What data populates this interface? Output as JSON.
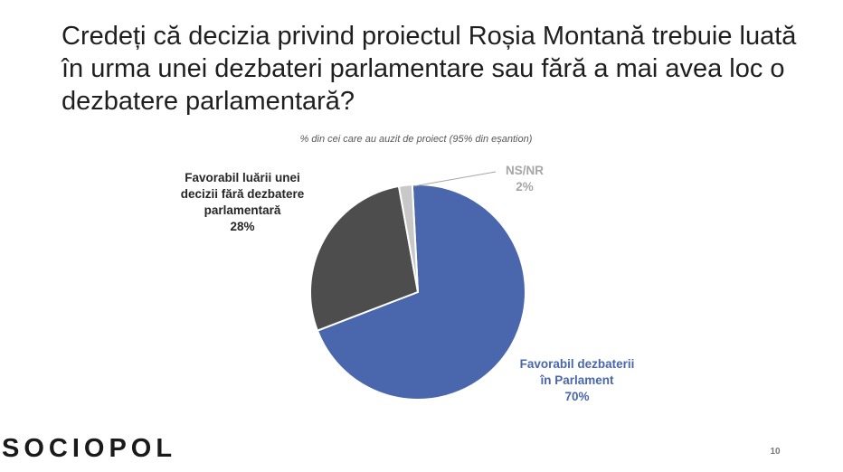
{
  "slide": {
    "title": "Credeți că decizia privind proiectul Roșia Montană trebuie luată în urma unei dezbateri parlamentare sau fără a mai avea loc o dezbatere parlamentară?",
    "subtitle": "% din cei care au auzit de proiect (95% din eșantion)",
    "logo": "SOCIOPOL",
    "page_number": "10"
  },
  "chart_data": {
    "type": "pie",
    "title": "Credeți că decizia privind proiectul Roșia Montană trebuie luată în urma unei dezbateri parlamentare sau fără a mai avea loc o dezbatere parlamentară?",
    "subtitle": "% din cei care au auzit de proiect (95% din eșantion)",
    "start_angle_deg": -3,
    "direction": "clockwise",
    "slices": [
      {
        "label_lines": [
          "Favorabil dezbaterii",
          "în Parlament"
        ],
        "label": "Favorabil dezbaterii în Parlament",
        "value": 70,
        "value_label": "70%",
        "color": "#4a67ad"
      },
      {
        "label_lines": [
          "Favorabil luării unei",
          "decizii fără dezbatere",
          "parlamentară"
        ],
        "label": "Favorabil luării unei decizii fără dezbatere parlamentară",
        "value": 28,
        "value_label": "28%",
        "color": "#4d4d4d"
      },
      {
        "label_lines": [
          "NS/NR"
        ],
        "label": "NS/NR",
        "value": 2,
        "value_label": "2%",
        "color": "#c8c8c8"
      }
    ],
    "legend": "none",
    "data_labels": "outside"
  }
}
